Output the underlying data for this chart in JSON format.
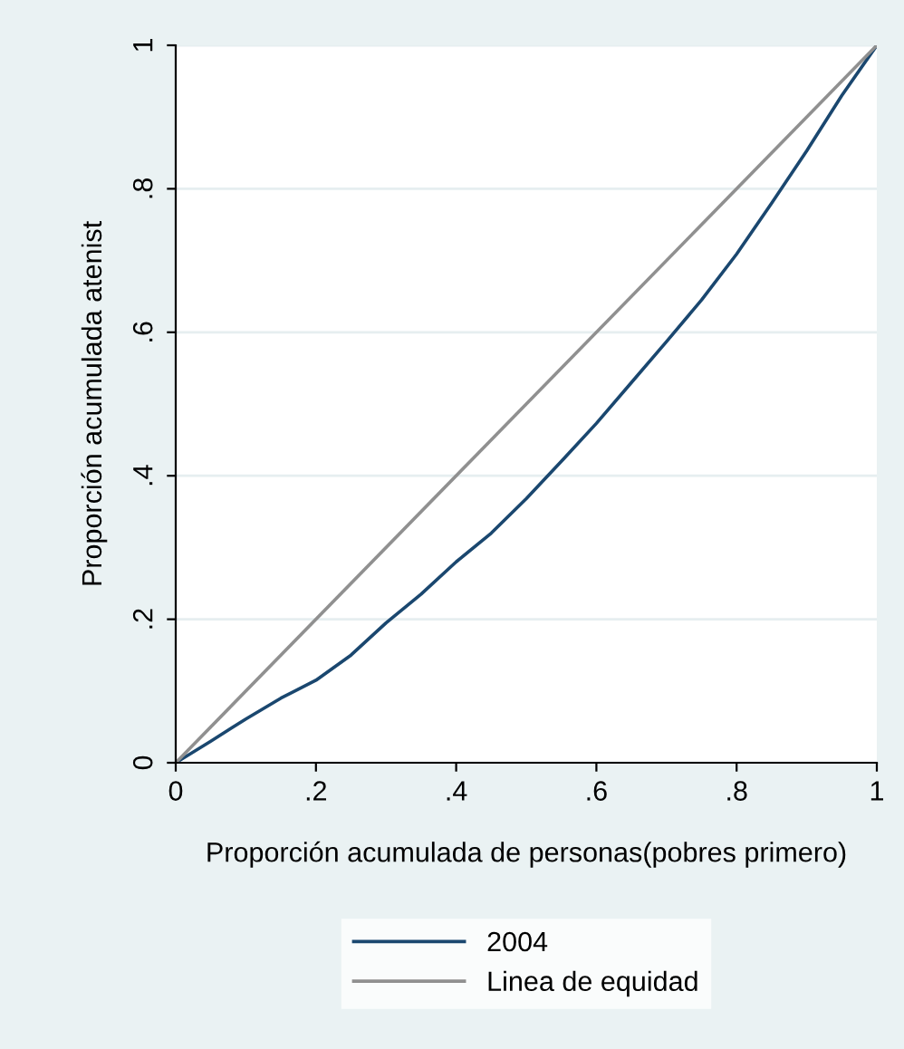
{
  "chart_data": {
    "type": "line",
    "xlabel": "Proporción acumulada de personas(pobres primero)",
    "ylabel": "Proporción acumulada atenist",
    "xlim": [
      0,
      1
    ],
    "ylim": [
      0,
      1
    ],
    "xticks": [
      0,
      {
        "value": 0.2,
        "label": ".2"
      },
      {
        "value": 0.4,
        "label": ".4"
      },
      {
        "value": 0.6,
        "label": ".6"
      },
      {
        "value": 0.8,
        "label": ".8"
      },
      1
    ],
    "yticks": [
      0,
      {
        "value": 0.2,
        "label": ".2"
      },
      {
        "value": 0.4,
        "label": ".4"
      },
      {
        "value": 0.6,
        "label": ".6"
      },
      {
        "value": 0.8,
        "label": ".8"
      },
      1
    ],
    "grid": "y",
    "legend": "bottom",
    "series": [
      {
        "name": "2004",
        "color": "#1a476f",
        "x": [
          0,
          0.05,
          0.1,
          0.15,
          0.2,
          0.25,
          0.3,
          0.35,
          0.4,
          0.45,
          0.5,
          0.55,
          0.6,
          0.65,
          0.7,
          0.75,
          0.8,
          0.85,
          0.9,
          0.95,
          1
        ],
        "values": [
          0,
          0.03,
          0.061,
          0.09,
          0.115,
          0.15,
          0.195,
          0.235,
          0.28,
          0.32,
          0.368,
          0.42,
          0.473,
          0.53,
          0.587,
          0.645,
          0.709,
          0.78,
          0.853,
          0.93,
          1
        ]
      },
      {
        "name": "Linea de equidad",
        "color": "#909090",
        "x": [
          0,
          1
        ],
        "values": [
          0,
          1
        ]
      }
    ]
  }
}
